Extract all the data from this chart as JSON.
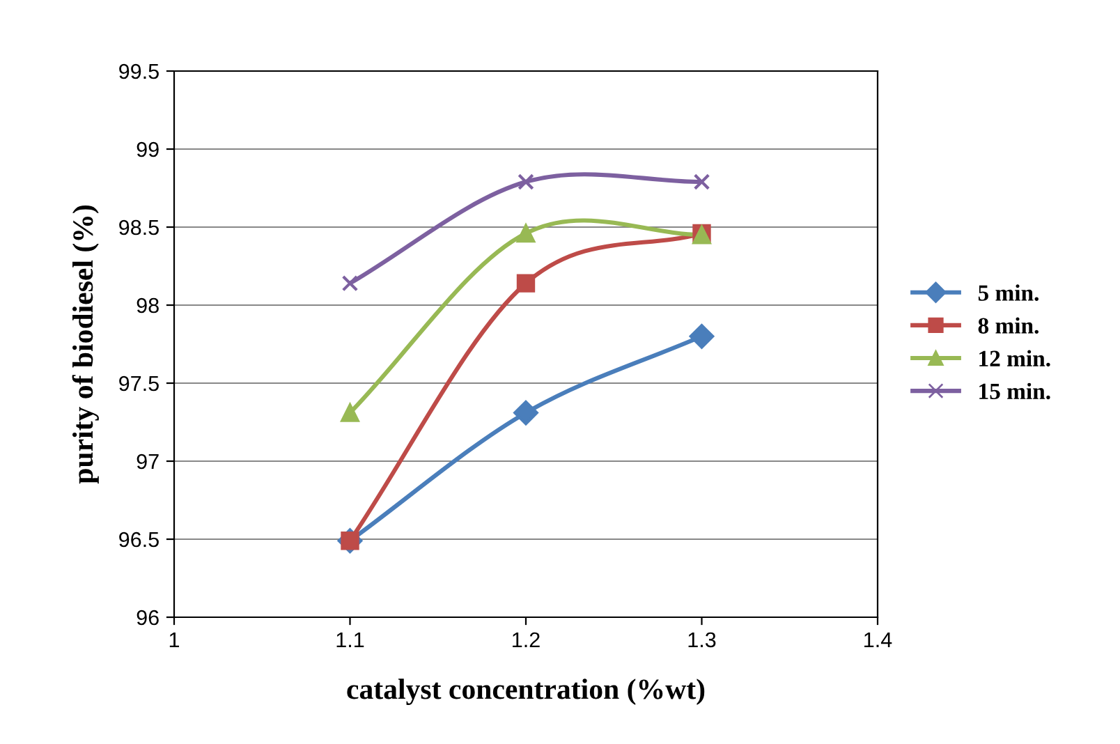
{
  "chart_data": {
    "type": "line",
    "xlabel": "catalyst concentration (%wt)",
    "ylabel": "purity of biodiesel (%)",
    "x": [
      1.1,
      1.2,
      1.3
    ],
    "series": [
      {
        "name": "5 min.",
        "color": "#4a7ebb",
        "marker": "diamond",
        "values": [
          96.49,
          97.31,
          97.8
        ]
      },
      {
        "name": "8 min.",
        "color": "#be4b48",
        "marker": "square",
        "values": [
          96.49,
          98.14,
          98.46
        ]
      },
      {
        "name": "12 min.",
        "color": "#98b954",
        "marker": "triangle",
        "values": [
          97.31,
          98.46,
          98.45
        ]
      },
      {
        "name": "15 min.",
        "color": "#7d60a0",
        "marker": "cross",
        "values": [
          98.14,
          98.79,
          98.79
        ]
      }
    ],
    "xlim": [
      1,
      1.4
    ],
    "xticks": [
      {
        "value": 1,
        "label": "1"
      },
      1.1,
      1.2,
      1.3,
      1.4
    ],
    "ylim": [
      96,
      99.5
    ],
    "yticks": [
      96,
      96.5,
      97,
      97.5,
      98,
      98.5,
      99,
      99.5
    ],
    "grid": "y",
    "legend": "right",
    "line_style": "solid"
  }
}
